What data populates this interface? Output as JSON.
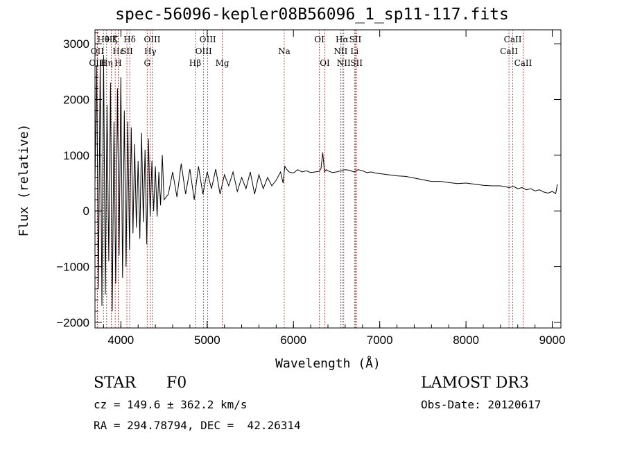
{
  "chart_data": {
    "type": "line",
    "title": "spec-56096-kepler08B56096_1_sp11-117.fits",
    "xlabel": "Wavelength (Å)",
    "ylabel": "Flux (relative)",
    "xlim": [
      3700,
      9100
    ],
    "ylim": [
      -2100,
      3250
    ],
    "xticks": [
      4000,
      5000,
      6000,
      7000,
      8000,
      9000
    ],
    "yticks": [
      -2000,
      -1000,
      0,
      1000,
      2000,
      3000
    ],
    "grid": false,
    "series": [
      {
        "name": "flux",
        "x": [
          3700,
          3720,
          3740,
          3760,
          3780,
          3800,
          3820,
          3840,
          3860,
          3880,
          3900,
          3920,
          3940,
          3960,
          3980,
          4000,
          4020,
          4040,
          4060,
          4080,
          4100,
          4120,
          4140,
          4160,
          4180,
          4200,
          4220,
          4240,
          4260,
          4280,
          4300,
          4320,
          4340,
          4360,
          4380,
          4400,
          4420,
          4440,
          4460,
          4480,
          4500,
          4550,
          4600,
          4650,
          4700,
          4750,
          4800,
          4850,
          4900,
          4950,
          5000,
          5050,
          5100,
          5150,
          5200,
          5250,
          5300,
          5350,
          5400,
          5450,
          5500,
          5550,
          5600,
          5650,
          5700,
          5750,
          5800,
          5850,
          5880,
          5900,
          5920,
          5950,
          6000,
          6050,
          6100,
          6150,
          6200,
          6250,
          6300,
          6320,
          6340,
          6360,
          6380,
          6400,
          6450,
          6500,
          6550,
          6600,
          6650,
          6700,
          6750,
          6800,
          6850,
          6900,
          6950,
          7000,
          7100,
          7200,
          7300,
          7400,
          7500,
          7600,
          7700,
          7800,
          7900,
          8000,
          8100,
          8200,
          8300,
          8400,
          8500,
          8550,
          8600,
          8650,
          8700,
          8750,
          8800,
          8850,
          8900,
          8950,
          9000,
          9020,
          9040,
          9060
        ],
        "y": [
          500,
          2600,
          -1400,
          2700,
          -1700,
          2800,
          -1500,
          1900,
          -900,
          2300,
          -1800,
          1600,
          -1300,
          2200,
          -800,
          2400,
          -1200,
          1800,
          -1000,
          1600,
          -700,
          1500,
          -400,
          1200,
          -300,
          900,
          -500,
          1400,
          -200,
          1100,
          -600,
          1300,
          -100,
          900,
          0,
          800,
          -100,
          700,
          100,
          1000,
          200,
          300,
          700,
          250,
          850,
          300,
          750,
          200,
          800,
          300,
          700,
          400,
          750,
          300,
          650,
          450,
          700,
          350,
          600,
          400,
          700,
          300,
          650,
          400,
          600,
          450,
          550,
          700,
          500,
          800,
          750,
          700,
          680,
          740,
          700,
          720,
          690,
          700,
          710,
          760,
          1050,
          700,
          740,
          720,
          690,
          700,
          720,
          740,
          730,
          700,
          740,
          720,
          690,
          700,
          680,
          670,
          650,
          630,
          620,
          590,
          560,
          530,
          530,
          510,
          490,
          500,
          480,
          460,
          450,
          450,
          420,
          440,
          400,
          420,
          380,
          400,
          360,
          380,
          340,
          320,
          350,
          330,
          310,
          480
        ]
      }
    ],
    "line_labels": [
      {
        "label": "Hθ",
        "x": 3798,
        "row": 1
      },
      {
        "label": "OII",
        "x": 3727,
        "row": 2
      },
      {
        "label": "OIII",
        "x": 3727,
        "row": 3
      },
      {
        "label": "Hη",
        "x": 3835,
        "row": 3
      },
      {
        "label": "Hζ",
        "x": 3889,
        "row": 1
      },
      {
        "label": "Hε",
        "x": 3970,
        "row": 2
      },
      {
        "label": "K",
        "x": 3934,
        "row": 1
      },
      {
        "label": "H",
        "x": 3969,
        "row": 3
      },
      {
        "label": "SII",
        "x": 4070,
        "row": 2
      },
      {
        "label": "Hδ",
        "x": 4102,
        "row": 1
      },
      {
        "label": "OIII",
        "x": 4363,
        "row": 1
      },
      {
        "label": "Hγ",
        "x": 4341,
        "row": 2
      },
      {
        "label": "G",
        "x": 4305,
        "row": 3
      },
      {
        "label": "Hβ",
        "x": 4861,
        "row": 3
      },
      {
        "label": "OIII",
        "x": 5007,
        "row": 1
      },
      {
        "label": "OIII",
        "x": 4959,
        "row": 2
      },
      {
        "label": "Mg",
        "x": 5175,
        "row": 3
      },
      {
        "label": "Na",
        "x": 5893,
        "row": 2
      },
      {
        "label": "OI",
        "x": 6300,
        "row": 1
      },
      {
        "label": "OI",
        "x": 6364,
        "row": 3
      },
      {
        "label": "Hα",
        "x": 6563,
        "row": 1
      },
      {
        "label": "NII",
        "x": 6548,
        "row": 2
      },
      {
        "label": "NII",
        "x": 6583,
        "row": 3
      },
      {
        "label": "SII",
        "x": 6717,
        "row": 1
      },
      {
        "label": "Li",
        "x": 6708,
        "row": 2
      },
      {
        "label": "SII",
        "x": 6731,
        "row": 3
      },
      {
        "label": "CaII",
        "x": 8542,
        "row": 1
      },
      {
        "label": "CaII",
        "x": 8498,
        "row": 2
      },
      {
        "label": "CaII",
        "x": 8662,
        "row": 3
      }
    ]
  },
  "footer": {
    "object_class": "STAR",
    "subclass": "F0",
    "survey": "LAMOST DR3",
    "redshift": "cz = 149.6 ± 362.2 km/s",
    "obs_date": "Obs-Date: 20120617",
    "coords": "RA = 294.78794, DEC =  42.26314"
  }
}
